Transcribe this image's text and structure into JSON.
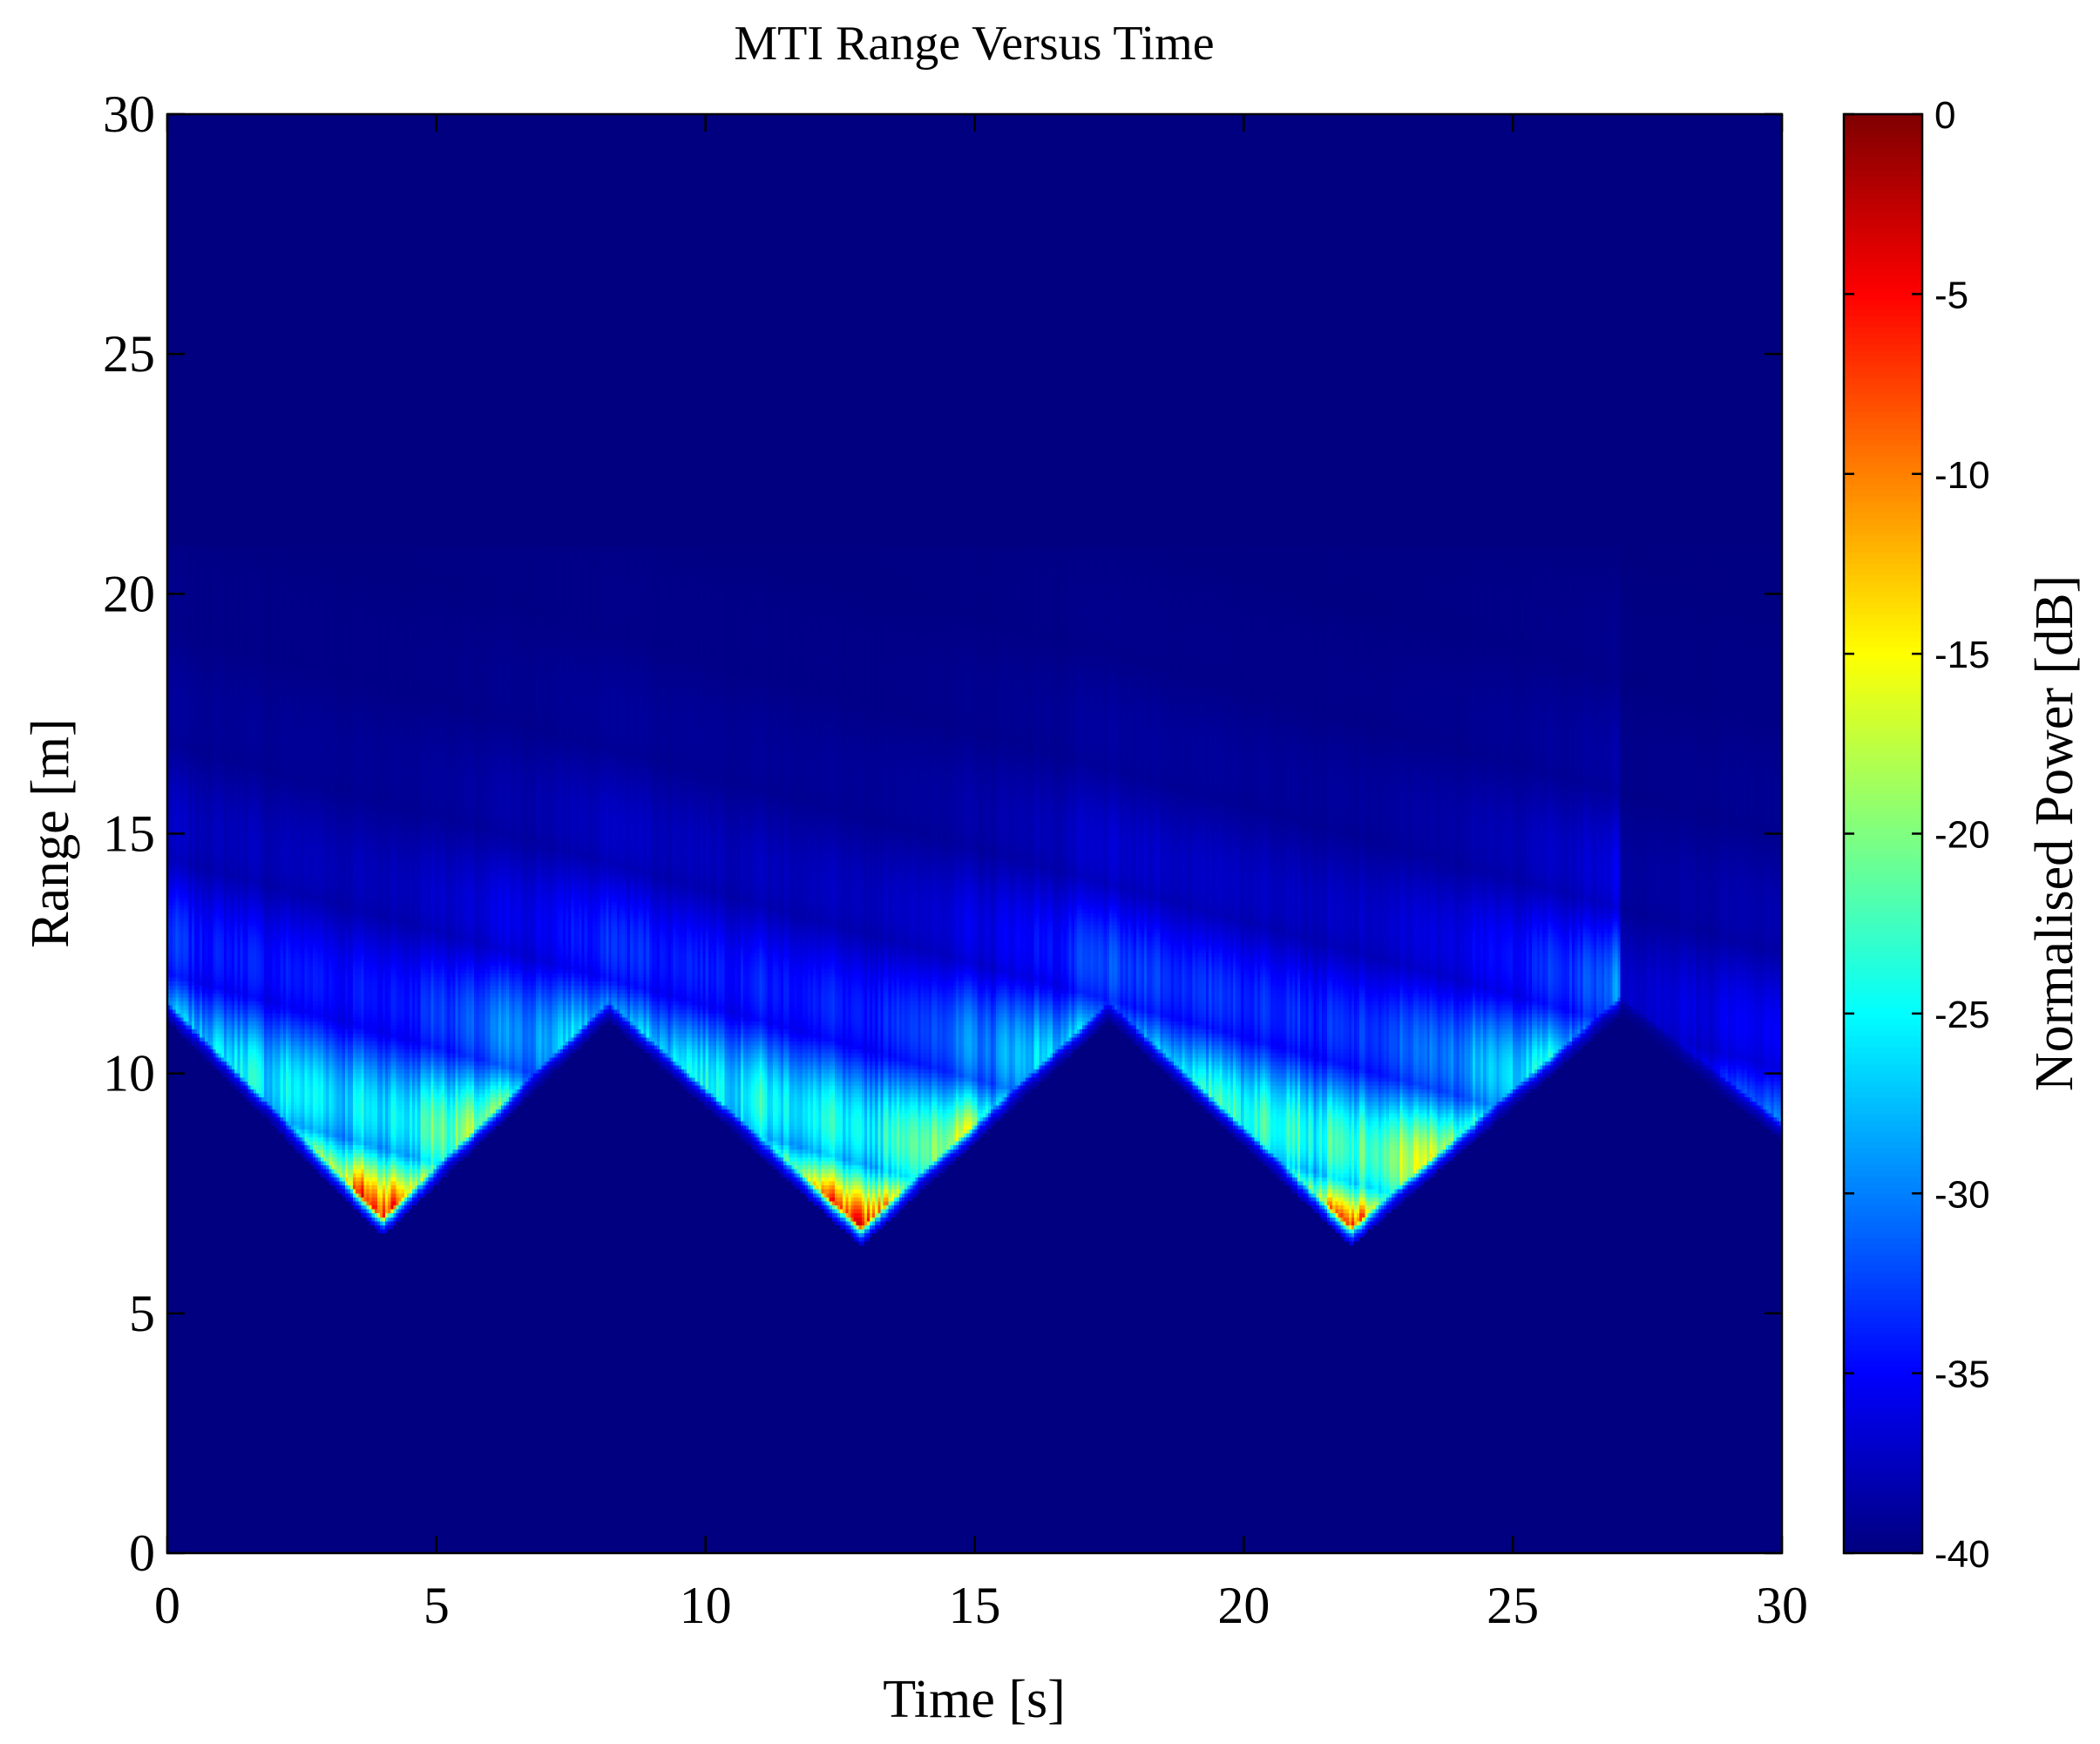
{
  "chart_data": {
    "type": "heatmap",
    "title": "MTI Range Versus Time",
    "xlabel": "Time [s]",
    "ylabel": "Range [m]",
    "xlim": [
      0,
      30
    ],
    "ylim": [
      0,
      30
    ],
    "x_ticks": [
      "0",
      "5",
      "10",
      "15",
      "20",
      "25",
      "30"
    ],
    "y_ticks": [
      "0",
      "5",
      "10",
      "15",
      "20",
      "25",
      "30"
    ],
    "colormap": "jet",
    "colorbar": {
      "label": "Normalised Power [dB]",
      "range": [
        -40,
        0
      ],
      "ticks": [
        "0",
        "-5",
        "-10",
        "-15",
        "-20",
        "-25",
        "-30",
        "-35",
        "-40"
      ]
    },
    "background_level_db": -40,
    "cycles": [
      {
        "start_s": 0.0,
        "trough_s": 4.0,
        "end_s": 8.2,
        "start_range_m": 11.5,
        "min_range_m": 7.0,
        "end_range_m": 11.5,
        "peak_db": -2
      },
      {
        "start_s": 8.2,
        "trough_s": 12.9,
        "end_s": 17.5,
        "start_range_m": 11.5,
        "min_range_m": 6.8,
        "end_range_m": 11.5,
        "peak_db": -2
      },
      {
        "start_s": 17.5,
        "trough_s": 22.0,
        "end_s": 27.0,
        "start_range_m": 11.5,
        "min_range_m": 6.8,
        "end_range_m": 11.6,
        "peak_db": -3
      },
      {
        "start_s": 27.0,
        "trough_s": 30.0,
        "end_s": 30.0,
        "start_range_m": 11.6,
        "min_range_m": 9.0,
        "end_range_m": 9.0,
        "peak_db": -28
      }
    ],
    "spread_limit_m": 21
  }
}
